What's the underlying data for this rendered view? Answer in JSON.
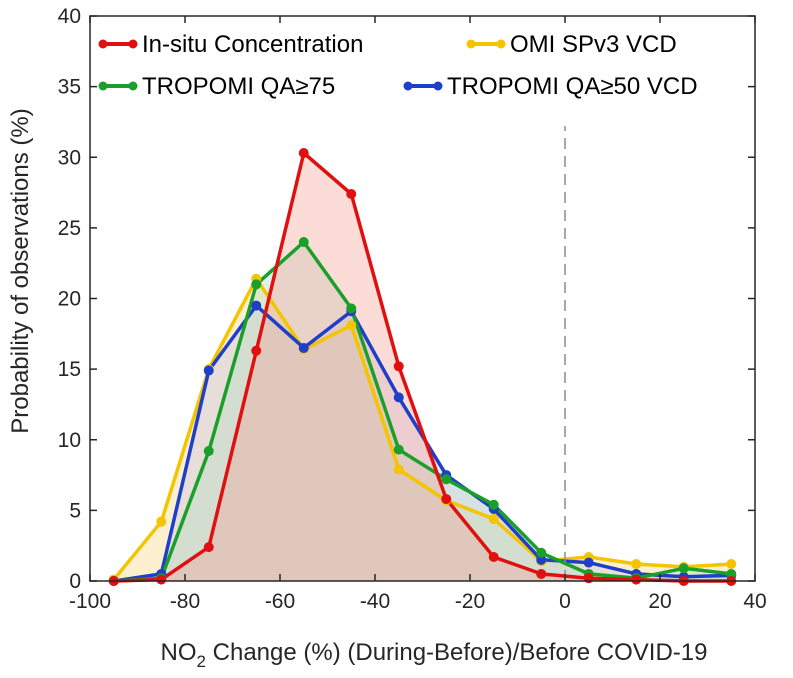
{
  "chart_data": {
    "type": "line",
    "title": "",
    "xlabel": {
      "prefix": "NO",
      "subscript": "2",
      "suffix": " Change (%) (During-Before)/Before COVID-19"
    },
    "ylabel": "Probability of observations (%)",
    "xlim": [
      -100,
      40
    ],
    "ylim": [
      0,
      40
    ],
    "xticks": [
      "-100",
      "-80",
      "-60",
      "-40",
      "-20",
      "0",
      "20",
      "40"
    ],
    "yticks": [
      "0",
      "5",
      "10",
      "15",
      "20",
      "25",
      "30",
      "35",
      "40"
    ],
    "grid": false,
    "legend_position": "top",
    "reference_line_x": 0,
    "x": [
      -95,
      -85,
      -75,
      -65,
      -55,
      -45,
      -35,
      -25,
      -15,
      -5,
      5,
      15,
      25,
      35
    ],
    "series": [
      {
        "name": "OMI SPv3 VCD",
        "color": "#f5c400",
        "fill": "#f7d98a",
        "values": [
          0.1,
          4.2,
          15.0,
          21.4,
          16.4,
          18.1,
          7.9,
          5.7,
          4.4,
          1.4,
          1.7,
          1.2,
          1.0,
          1.2
        ]
      },
      {
        "name": "TROPOMI QA≥50 VCD",
        "color": "#1f3fc8",
        "fill": "#c8c4e8",
        "values": [
          0.0,
          0.5,
          14.9,
          19.5,
          16.5,
          19.1,
          13.0,
          7.5,
          5.1,
          1.5,
          1.3,
          0.5,
          0.3,
          0.4
        ]
      },
      {
        "name": "TROPOMI QA≥75",
        "color": "#1aa02a",
        "fill": "#b6dcc0",
        "values": [
          0.0,
          0.2,
          9.2,
          21.0,
          24.0,
          19.3,
          9.3,
          7.2,
          5.4,
          2.0,
          0.5,
          0.2,
          0.9,
          0.5
        ]
      },
      {
        "name": "In-situ Concentration",
        "color": "#e01010",
        "fill": "#f6a89c",
        "values": [
          0.0,
          0.1,
          2.4,
          16.3,
          30.3,
          27.4,
          15.2,
          5.8,
          1.7,
          0.5,
          0.2,
          0.1,
          0.0,
          0.0
        ]
      }
    ],
    "legend": [
      {
        "label": "In-situ Concentration",
        "color": "#e01010"
      },
      {
        "label": "OMI SPv3 VCD",
        "color": "#f5c400"
      },
      {
        "label": "TROPOMI QA≥75",
        "color": "#1aa02a"
      },
      {
        "label": "TROPOMI QA≥50 VCD",
        "color": "#1f3fc8"
      }
    ]
  }
}
